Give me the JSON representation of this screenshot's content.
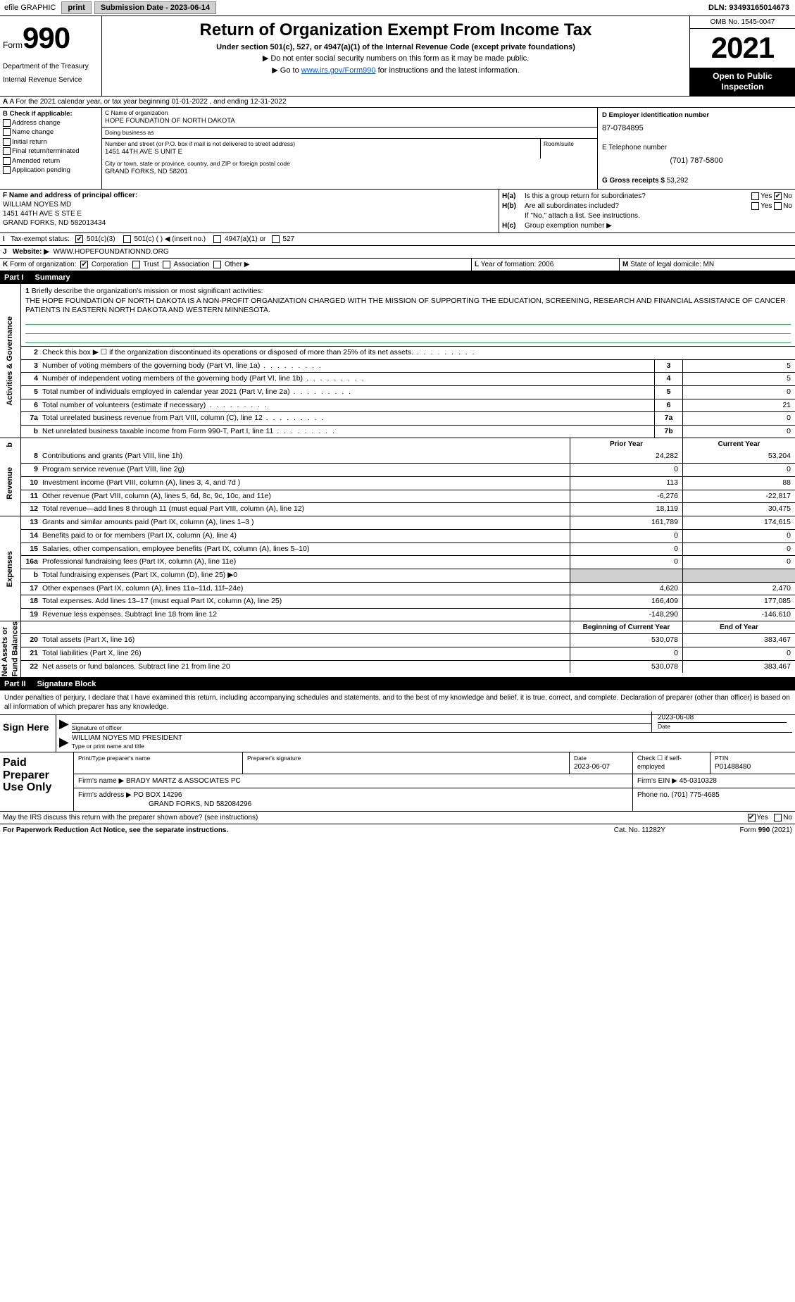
{
  "topbar": {
    "efile": "efile GRAPHIC",
    "print": "print",
    "sub_label": "Submission Date - 2023-06-14",
    "dln": "DLN: 93493165014673"
  },
  "header": {
    "form_word": "Form",
    "form_num": "990",
    "dept1": "Department of the Treasury",
    "dept2": "Internal Revenue Service",
    "title": "Return of Organization Exempt From Income Tax",
    "subtitle": "Under section 501(c), 527, or 4947(a)(1) of the Internal Revenue Code (except private foundations)",
    "instr1": "▶ Do not enter social security numbers on this form as it may be made public.",
    "instr2_pre": "▶ Go to ",
    "instr2_link": "www.irs.gov/Form990",
    "instr2_post": " for instructions and the latest information.",
    "omb": "OMB No. 1545-0047",
    "year": "2021",
    "open1": "Open to Public",
    "open2": "Inspection"
  },
  "row_a": "A For the 2021 calendar year, or tax year beginning 01-01-2022   , and ending 12-31-2022",
  "col_b": {
    "hdr": "B Check if applicable:",
    "i1": "Address change",
    "i2": "Name change",
    "i3": "Initial return",
    "i4": "Final return/terminated",
    "i5": "Amended return",
    "i6": "Application pending"
  },
  "col_c": {
    "name_lbl": "C Name of organization",
    "name": "HOPE FOUNDATION OF NORTH DAKOTA",
    "dba_lbl": "Doing business as",
    "dba": "",
    "street_lbl": "Number and street (or P.O. box if mail is not delivered to street address)",
    "street": "1451 44TH AVE S UNIT E",
    "room_lbl": "Room/suite",
    "room": "",
    "city_lbl": "City or town, state or province, country, and ZIP or foreign postal code",
    "city": "GRAND FORKS, ND  58201"
  },
  "col_d": {
    "ein_lbl": "D Employer identification number",
    "ein": "87-0784895",
    "tel_lbl": "E Telephone number",
    "tel": "(701) 787-5800",
    "gross_lbl": "G Gross receipts $",
    "gross": "53,292"
  },
  "col_f": {
    "lbl": "F Name and address of principal officer:",
    "l1": "WILLIAM NOYES MD",
    "l2": "1451 44TH AVE S STE E",
    "l3": "GRAND FORKS, ND  582013434"
  },
  "col_h": {
    "ha": "H(a)",
    "ha_txt": "Is this a group return for subordinates?",
    "hb": "H(b)",
    "hb_txt": "Are all subordinates included?",
    "hb_note": "If \"No,\" attach a list. See instructions.",
    "hc": "H(c)",
    "hc_txt": "Group exemption number ▶",
    "yes": "Yes",
    "no": "No"
  },
  "row_i": {
    "lbl": "I",
    "txt": "Tax-exempt status:",
    "o1": "501(c)(3)",
    "o2": "501(c) (   ) ◀ (insert no.)",
    "o3": "4947(a)(1) or",
    "o4": "527"
  },
  "row_j": {
    "lbl": "J",
    "txt": "Website: ▶",
    "val": "WWW.HOPEFOUNDATIONND.ORG"
  },
  "row_k": {
    "lbl": "K",
    "txt": "Form of organization:",
    "o1": "Corporation",
    "o2": "Trust",
    "o3": "Association",
    "o4": "Other ▶",
    "l_lbl": "L",
    "l_txt": "Year of formation: 2006",
    "m_lbl": "M",
    "m_txt": "State of legal domicile: MN"
  },
  "part1": {
    "num": "Part I",
    "title": "Summary"
  },
  "vtabs": {
    "ag": "Activities & Governance",
    "rev": "Revenue",
    "exp": "Expenses",
    "net": "Net Assets or\nFund Balances",
    "b": "b"
  },
  "mission": {
    "num": "1",
    "lbl": "Briefly describe the organization's mission or most significant activities:",
    "txt": "THE HOPE FOUNDATION OF NORTH DAKOTA IS A NON-PROFIT ORGANIZATION CHARGED WITH THE MISSION OF SUPPORTING THE EDUCATION, SCREENING, RESEARCH AND FINANCIAL ASSISTANCE OF CANCER PATIENTS IN EASTERN NORTH DAKOTA AND WESTERN MINNESOTA."
  },
  "srows": [
    {
      "n": "2",
      "d": "Check this box ▶ ☐ if the organization discontinued its operations or disposed of more than 25% of its net assets.",
      "bn": "",
      "bv": ""
    },
    {
      "n": "3",
      "d": "Number of voting members of the governing body (Part VI, line 1a)",
      "bn": "3",
      "bv": "5"
    },
    {
      "n": "4",
      "d": "Number of independent voting members of the governing body (Part VI, line 1b)",
      "bn": "4",
      "bv": "5"
    },
    {
      "n": "5",
      "d": "Total number of individuals employed in calendar year 2021 (Part V, line 2a)",
      "bn": "5",
      "bv": "0"
    },
    {
      "n": "6",
      "d": "Total number of volunteers (estimate if necessary)",
      "bn": "6",
      "bv": "21"
    },
    {
      "n": "7a",
      "d": "Total unrelated business revenue from Part VIII, column (C), line 12",
      "bn": "7a",
      "bv": "0"
    },
    {
      "n": "b",
      "d": "Net unrelated business taxable income from Form 990-T, Part I, line 11",
      "bn": "7b",
      "bv": "0"
    }
  ],
  "fin_hdr": {
    "py": "Prior Year",
    "cy": "Current Year",
    "boy": "Beginning of Current Year",
    "eoy": "End of Year"
  },
  "rev_rows": [
    {
      "n": "8",
      "d": "Contributions and grants (Part VIII, line 1h)",
      "c1": "24,282",
      "c2": "53,204"
    },
    {
      "n": "9",
      "d": "Program service revenue (Part VIII, line 2g)",
      "c1": "0",
      "c2": "0"
    },
    {
      "n": "10",
      "d": "Investment income (Part VIII, column (A), lines 3, 4, and 7d )",
      "c1": "113",
      "c2": "88"
    },
    {
      "n": "11",
      "d": "Other revenue (Part VIII, column (A), lines 5, 6d, 8c, 9c, 10c, and 11e)",
      "c1": "-6,276",
      "c2": "-22,817"
    },
    {
      "n": "12",
      "d": "Total revenue—add lines 8 through 11 (must equal Part VIII, column (A), line 12)",
      "c1": "18,119",
      "c2": "30,475"
    }
  ],
  "exp_rows": [
    {
      "n": "13",
      "d": "Grants and similar amounts paid (Part IX, column (A), lines 1–3 )",
      "c1": "161,789",
      "c2": "174,615"
    },
    {
      "n": "14",
      "d": "Benefits paid to or for members (Part IX, column (A), line 4)",
      "c1": "0",
      "c2": "0"
    },
    {
      "n": "15",
      "d": "Salaries, other compensation, employee benefits (Part IX, column (A), lines 5–10)",
      "c1": "0",
      "c2": "0"
    },
    {
      "n": "16a",
      "d": "Professional fundraising fees (Part IX, column (A), line 11e)",
      "c1": "0",
      "c2": "0"
    },
    {
      "n": "b",
      "d": "Total fundraising expenses (Part IX, column (D), line 25) ▶0",
      "grey": true
    },
    {
      "n": "17",
      "d": "Other expenses (Part IX, column (A), lines 11a–11d, 11f–24e)",
      "c1": "4,620",
      "c2": "2,470"
    },
    {
      "n": "18",
      "d": "Total expenses. Add lines 13–17 (must equal Part IX, column (A), line 25)",
      "c1": "166,409",
      "c2": "177,085"
    },
    {
      "n": "19",
      "d": "Revenue less expenses. Subtract line 18 from line 12",
      "c1": "-148,290",
      "c2": "-146,610"
    }
  ],
  "net_rows": [
    {
      "n": "20",
      "d": "Total assets (Part X, line 16)",
      "c1": "530,078",
      "c2": "383,467"
    },
    {
      "n": "21",
      "d": "Total liabilities (Part X, line 26)",
      "c1": "0",
      "c2": "0"
    },
    {
      "n": "22",
      "d": "Net assets or fund balances. Subtract line 21 from line 20",
      "c1": "530,078",
      "c2": "383,467"
    }
  ],
  "part2": {
    "num": "Part II",
    "title": "Signature Block"
  },
  "sig_intro": "Under penalties of perjury, I declare that I have examined this return, including accompanying schedules and statements, and to the best of my knowledge and belief, it is true, correct, and complete. Declaration of preparer (other than officer) is based on all information of which preparer has any knowledge.",
  "sign": {
    "left": "Sign Here",
    "sig_lbl": "Signature of officer",
    "date": "2023-06-08",
    "date_lbl": "Date",
    "name": "WILLIAM NOYES MD  PRESIDENT",
    "name_lbl": "Type or print name and title"
  },
  "prep": {
    "left": "Paid Preparer Use Only",
    "r1": {
      "c1_lbl": "Print/Type preparer's name",
      "c1": "",
      "c2_lbl": "Preparer's signature",
      "c2": "",
      "c3_lbl": "Date",
      "c3": "2023-06-07",
      "c4_lbl": "Check ☐ if self-employed",
      "c5_lbl": "PTIN",
      "c5": "P01488480"
    },
    "r2": {
      "lbl": "Firm's name    ▶",
      "val": "BRADY MARTZ & ASSOCIATES PC",
      "ein_lbl": "Firm's EIN ▶",
      "ein": "45-0310328"
    },
    "r3": {
      "lbl": "Firm's address ▶",
      "l1": "PO BOX 14296",
      "l2": "GRAND FORKS, ND  582084296",
      "ph_lbl": "Phone no.",
      "ph": "(701) 775-4685"
    }
  },
  "footer": {
    "discuss": "May the IRS discuss this return with the preparer shown above? (see instructions)",
    "yes": "Yes",
    "no": "No",
    "pra": "For Paperwork Reduction Act Notice, see the separate instructions.",
    "cat": "Cat. No. 11282Y",
    "form": "Form 990 (2021)"
  }
}
